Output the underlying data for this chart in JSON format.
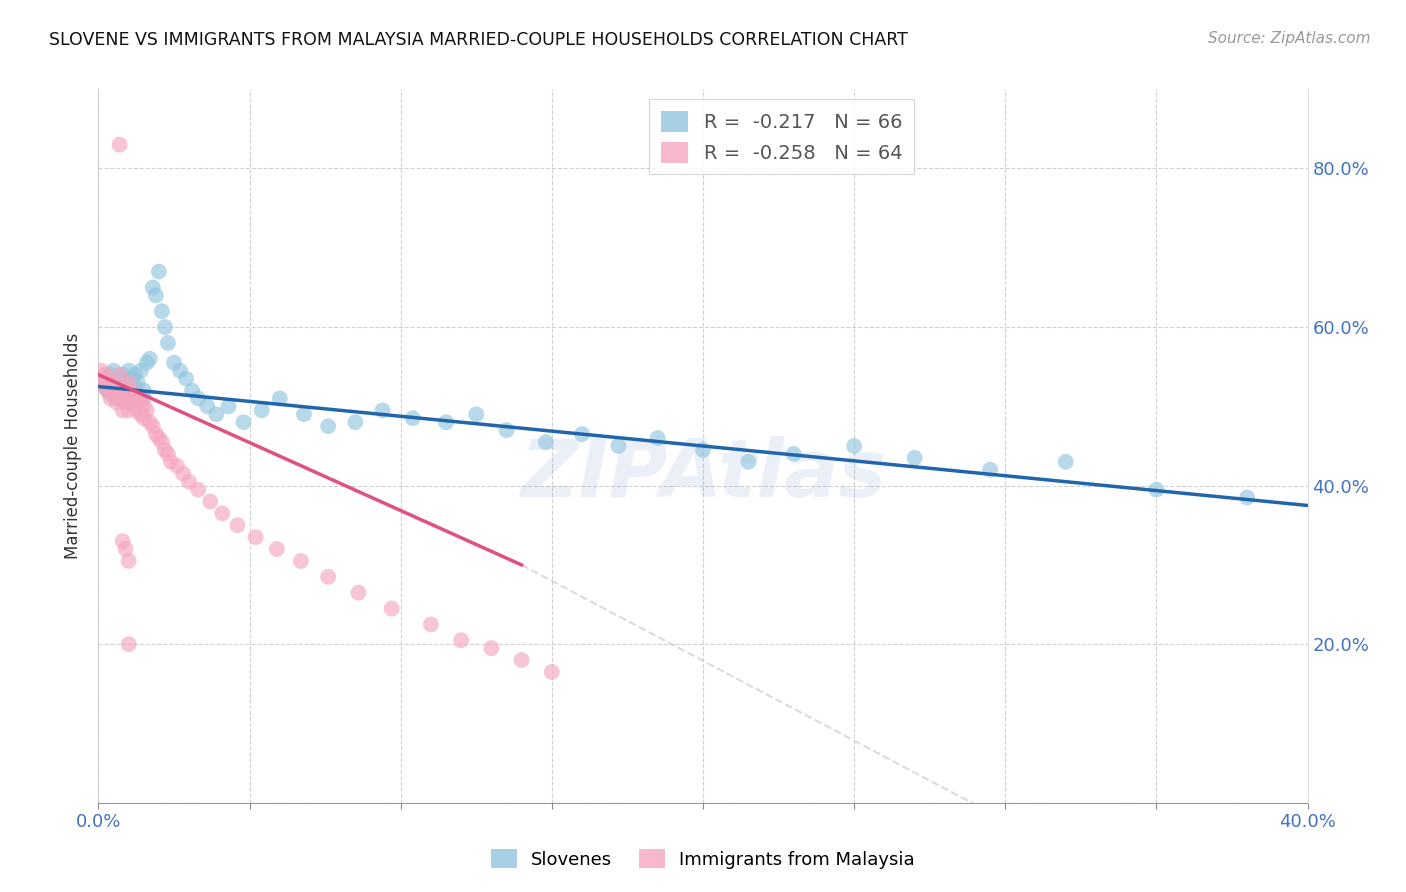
{
  "title": "SLOVENE VS IMMIGRANTS FROM MALAYSIA MARRIED-COUPLE HOUSEHOLDS CORRELATION CHART",
  "source": "Source: ZipAtlas.com",
  "ylabel": "Married-couple Households",
  "xlim": [
    0.0,
    0.4
  ],
  "ylim": [
    0.0,
    0.9
  ],
  "blue_color": "#92c5de",
  "pink_color": "#f4a6bd",
  "blue_line_color": "#2166ac",
  "pink_line_color": "#e05080",
  "gray_line_color": "#cccccc",
  "grid_color": "#cccccc",
  "watermark": "ZIPAtlas",
  "legend_R_blue": "-0.217",
  "legend_N_blue": "66",
  "legend_R_pink": "-0.258",
  "legend_N_pink": "64",
  "legend_label_blue": "Slovenes",
  "legend_label_pink": "Immigrants from Malaysia",
  "blue_x": [
    0.001,
    0.002,
    0.003,
    0.003,
    0.004,
    0.004,
    0.005,
    0.005,
    0.006,
    0.007,
    0.007,
    0.008,
    0.008,
    0.009,
    0.009,
    0.01,
    0.01,
    0.011,
    0.011,
    0.012,
    0.012,
    0.013,
    0.013,
    0.014,
    0.015,
    0.015,
    0.016,
    0.017,
    0.018,
    0.019,
    0.02,
    0.021,
    0.022,
    0.023,
    0.025,
    0.027,
    0.029,
    0.031,
    0.033,
    0.036,
    0.039,
    0.043,
    0.048,
    0.054,
    0.06,
    0.068,
    0.076,
    0.085,
    0.094,
    0.104,
    0.115,
    0.125,
    0.135,
    0.148,
    0.16,
    0.172,
    0.185,
    0.2,
    0.215,
    0.23,
    0.25,
    0.27,
    0.295,
    0.32,
    0.35,
    0.38
  ],
  "blue_y": [
    0.53,
    0.525,
    0.535,
    0.52,
    0.54,
    0.515,
    0.53,
    0.545,
    0.51,
    0.535,
    0.52,
    0.54,
    0.51,
    0.53,
    0.52,
    0.545,
    0.505,
    0.535,
    0.515,
    0.525,
    0.54,
    0.51,
    0.53,
    0.545,
    0.52,
    0.51,
    0.555,
    0.56,
    0.65,
    0.64,
    0.67,
    0.62,
    0.6,
    0.58,
    0.555,
    0.545,
    0.535,
    0.52,
    0.51,
    0.5,
    0.49,
    0.5,
    0.48,
    0.495,
    0.51,
    0.49,
    0.475,
    0.48,
    0.495,
    0.485,
    0.48,
    0.49,
    0.47,
    0.455,
    0.465,
    0.45,
    0.46,
    0.445,
    0.43,
    0.44,
    0.45,
    0.435,
    0.42,
    0.43,
    0.395,
    0.385
  ],
  "pink_x": [
    0.001,
    0.001,
    0.002,
    0.002,
    0.003,
    0.003,
    0.004,
    0.004,
    0.005,
    0.005,
    0.006,
    0.006,
    0.007,
    0.007,
    0.007,
    0.008,
    0.008,
    0.008,
    0.009,
    0.009,
    0.01,
    0.01,
    0.01,
    0.011,
    0.011,
    0.012,
    0.012,
    0.013,
    0.013,
    0.014,
    0.014,
    0.015,
    0.015,
    0.016,
    0.017,
    0.018,
    0.019,
    0.02,
    0.021,
    0.022,
    0.023,
    0.024,
    0.026,
    0.028,
    0.03,
    0.033,
    0.037,
    0.041,
    0.046,
    0.052,
    0.059,
    0.067,
    0.076,
    0.086,
    0.097,
    0.11,
    0.12,
    0.13,
    0.14,
    0.15,
    0.008,
    0.009,
    0.01,
    0.01
  ],
  "pink_y": [
    0.545,
    0.53,
    0.54,
    0.525,
    0.535,
    0.52,
    0.53,
    0.51,
    0.525,
    0.515,
    0.52,
    0.505,
    0.54,
    0.515,
    0.83,
    0.51,
    0.525,
    0.495,
    0.52,
    0.505,
    0.53,
    0.51,
    0.495,
    0.52,
    0.505,
    0.515,
    0.5,
    0.51,
    0.495,
    0.51,
    0.49,
    0.5,
    0.485,
    0.495,
    0.48,
    0.475,
    0.465,
    0.46,
    0.455,
    0.445,
    0.44,
    0.43,
    0.425,
    0.415,
    0.405,
    0.395,
    0.38,
    0.365,
    0.35,
    0.335,
    0.32,
    0.305,
    0.285,
    0.265,
    0.245,
    0.225,
    0.205,
    0.195,
    0.18,
    0.165,
    0.33,
    0.32,
    0.305,
    0.2
  ]
}
